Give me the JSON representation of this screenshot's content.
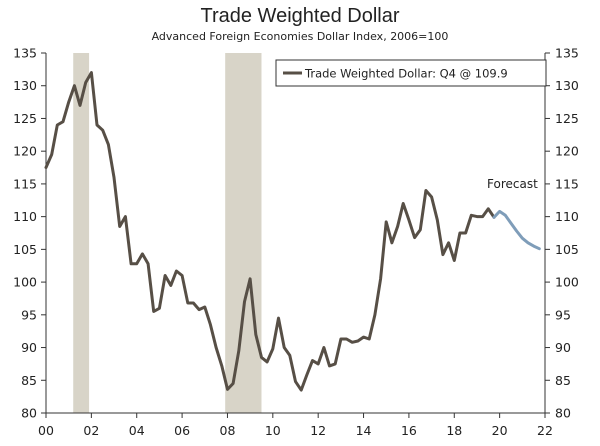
{
  "chart_data": {
    "type": "line",
    "title": "Trade Weighted Dollar",
    "subtitle": "Advanced Foreign Economies Dollar Index, 2006=100",
    "xlabel": "",
    "ylabel": "",
    "xlim": [
      2000,
      2022
    ],
    "ylim": [
      80,
      135
    ],
    "x_ticks": [
      2000,
      2002,
      2004,
      2006,
      2008,
      2010,
      2012,
      2014,
      2016,
      2018,
      2020,
      2022
    ],
    "x_tick_labels": [
      "00",
      "02",
      "04",
      "06",
      "08",
      "10",
      "12",
      "14",
      "16",
      "18",
      "20",
      "22"
    ],
    "y_ticks": [
      80,
      85,
      90,
      95,
      100,
      105,
      110,
      115,
      120,
      125,
      130,
      135
    ],
    "grid": false,
    "legend_position": "top-right",
    "recessions": [
      [
        2001.2,
        2001.9
      ],
      [
        2007.9,
        2009.5
      ]
    ],
    "annotation": "Forecast",
    "colors": {
      "actual": "#574f46",
      "forecast": "#7f9db9",
      "recession": "#d8d4c8",
      "axis": "#333333",
      "text": "#222222"
    },
    "series": [
      {
        "name": "Trade Weighted Dollar: Q4 @ 109.9",
        "style": "actual",
        "points": [
          [
            2000.0,
            117.5
          ],
          [
            2000.25,
            119.5
          ],
          [
            2000.5,
            124.0
          ],
          [
            2000.75,
            124.5
          ],
          [
            2001.0,
            127.5
          ],
          [
            2001.25,
            130.0
          ],
          [
            2001.5,
            127.0
          ],
          [
            2001.75,
            130.5
          ],
          [
            2002.0,
            132.0
          ],
          [
            2002.25,
            124.0
          ],
          [
            2002.5,
            123.2
          ],
          [
            2002.75,
            121.0
          ],
          [
            2003.0,
            116.0
          ],
          [
            2003.25,
            108.5
          ],
          [
            2003.5,
            110.0
          ],
          [
            2003.75,
            102.8
          ],
          [
            2004.0,
            102.8
          ],
          [
            2004.25,
            104.3
          ],
          [
            2004.5,
            102.8
          ],
          [
            2004.75,
            95.5
          ],
          [
            2005.0,
            96.0
          ],
          [
            2005.25,
            101.0
          ],
          [
            2005.5,
            99.5
          ],
          [
            2005.75,
            101.7
          ],
          [
            2006.0,
            101.0
          ],
          [
            2006.25,
            96.8
          ],
          [
            2006.5,
            96.8
          ],
          [
            2006.75,
            95.8
          ],
          [
            2007.0,
            96.2
          ],
          [
            2007.25,
            93.5
          ],
          [
            2007.5,
            90.0
          ],
          [
            2007.75,
            87.2
          ],
          [
            2008.0,
            83.6
          ],
          [
            2008.25,
            84.5
          ],
          [
            2008.5,
            89.5
          ],
          [
            2008.75,
            97.0
          ],
          [
            2009.0,
            100.5
          ],
          [
            2009.25,
            92.0
          ],
          [
            2009.5,
            88.5
          ],
          [
            2009.75,
            87.8
          ],
          [
            2010.0,
            89.8
          ],
          [
            2010.25,
            94.5
          ],
          [
            2010.5,
            90.0
          ],
          [
            2010.75,
            88.8
          ],
          [
            2011.0,
            84.8
          ],
          [
            2011.25,
            83.5
          ],
          [
            2011.5,
            85.8
          ],
          [
            2011.75,
            88.0
          ],
          [
            2012.0,
            87.5
          ],
          [
            2012.25,
            90.0
          ],
          [
            2012.5,
            87.2
          ],
          [
            2012.75,
            87.5
          ],
          [
            2013.0,
            91.3
          ],
          [
            2013.25,
            91.3
          ],
          [
            2013.5,
            90.8
          ],
          [
            2013.75,
            91.0
          ],
          [
            2014.0,
            91.6
          ],
          [
            2014.25,
            91.3
          ],
          [
            2014.5,
            95.0
          ],
          [
            2014.75,
            100.5
          ],
          [
            2015.0,
            109.2
          ],
          [
            2015.25,
            106.0
          ],
          [
            2015.5,
            108.5
          ],
          [
            2015.75,
            112.0
          ],
          [
            2016.0,
            109.5
          ],
          [
            2016.25,
            106.8
          ],
          [
            2016.5,
            108.0
          ],
          [
            2016.75,
            114.0
          ],
          [
            2017.0,
            113.0
          ],
          [
            2017.25,
            109.5
          ],
          [
            2017.5,
            104.2
          ],
          [
            2017.75,
            106.0
          ],
          [
            2018.0,
            103.3
          ],
          [
            2018.25,
            107.5
          ],
          [
            2018.5,
            107.5
          ],
          [
            2018.75,
            110.2
          ],
          [
            2019.0,
            110.0
          ],
          [
            2019.25,
            110.0
          ],
          [
            2019.5,
            111.2
          ],
          [
            2019.75,
            109.9
          ]
        ]
      },
      {
        "name": "",
        "style": "forecast",
        "points": [
          [
            2019.75,
            109.9
          ],
          [
            2020.0,
            110.8
          ],
          [
            2020.25,
            110.2
          ],
          [
            2020.5,
            109.0
          ],
          [
            2020.75,
            107.8
          ],
          [
            2021.0,
            106.7
          ],
          [
            2021.25,
            106.0
          ],
          [
            2021.5,
            105.5
          ],
          [
            2021.75,
            105.1
          ]
        ]
      }
    ]
  }
}
